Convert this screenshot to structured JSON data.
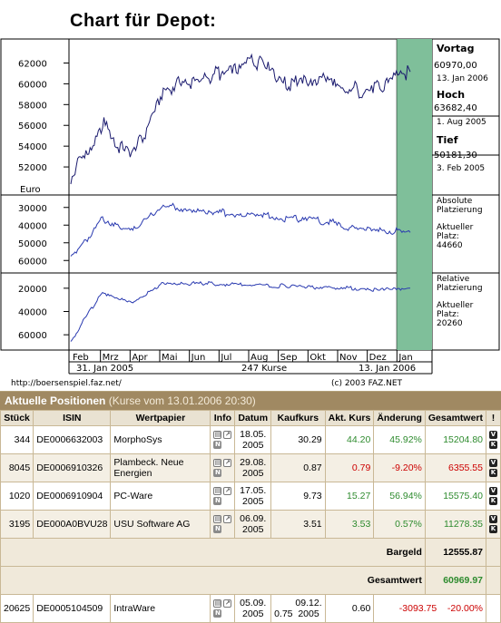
{
  "chart": {
    "title": "Chart für Depot:",
    "currency_label": "Euro",
    "y_ticks_price": [
      "62000",
      "60000",
      "58000",
      "56000",
      "54000",
      "52000"
    ],
    "y_ticks_abs": [
      "30000",
      "40000",
      "50000",
      "60000"
    ],
    "y_ticks_rel": [
      "20000",
      "40000",
      "60000"
    ],
    "months": [
      "Feb",
      "Mrz",
      "Apr",
      "Mai",
      "Jun",
      "Jul",
      "Aug",
      "Sep",
      "Okt",
      "Nov",
      "Dez",
      "Jan"
    ],
    "start_date": "31. Jan 2005",
    "count_label": "247 Kurse",
    "end_date": "13. Jan 2006",
    "url": "http://boersenspiel.faz.net/",
    "copyright": "(c) 2003 FAZ.NET",
    "vortag": {
      "label": "Vortag",
      "value": "60970,00",
      "date": "13. Jan 2006"
    },
    "hoch": {
      "label": "Hoch",
      "value": "63682,40",
      "date": "1. Aug 2005"
    },
    "tief": {
      "label": "Tief",
      "value": "50181,30",
      "date": "3. Feb 2005"
    },
    "abs_label_1": "Absolute",
    "abs_label_2": "Platzierung",
    "abs_label_3": "Aktueller",
    "abs_label_4": "Platz:",
    "abs_value": "44660",
    "rel_label_1": "Relative",
    "rel_label_2": "Platzierung",
    "rel_label_3": "Aktueller",
    "rel_label_4": "Platz:",
    "rel_value": "20260",
    "highlight_color": "#7fbf9a"
  },
  "chart_data": [
    {
      "type": "line",
      "title": "Chart für Depot:",
      "ylabel": "Euro",
      "x": [
        "Feb",
        "Mrz",
        "Apr",
        "Mai",
        "Jun",
        "Jul",
        "Aug",
        "Sep",
        "Okt",
        "Nov",
        "Dez",
        "Jan"
      ],
      "series": [
        {
          "values": [
            51000,
            56000,
            53000,
            59500,
            60000,
            61000,
            62500,
            60000,
            60500,
            59500,
            59800,
            60970
          ]
        }
      ],
      "ylim": [
        50000,
        63700
      ]
    },
    {
      "type": "line",
      "x": [
        "Feb",
        "Mrz",
        "Apr",
        "Mai",
        "Jun",
        "Jul",
        "Aug",
        "Sep",
        "Okt",
        "Nov",
        "Dez",
        "Jan"
      ],
      "series": [
        {
          "name": "Absolute Platzierung",
          "values": [
            60000,
            37000,
            42000,
            29000,
            31000,
            33000,
            34000,
            36000,
            37000,
            41000,
            43000,
            44660
          ]
        }
      ],
      "ylim": [
        25000,
        65000
      ]
    },
    {
      "type": "line",
      "x": [
        "Feb",
        "Mrz",
        "Apr",
        "Mai",
        "Jun",
        "Jul",
        "Aug",
        "Sep",
        "Okt",
        "Nov",
        "Dez",
        "Jan"
      ],
      "series": [
        {
          "name": "Relative Platzierung",
          "values": [
            65000,
            25000,
            32000,
            15000,
            16000,
            16500,
            17000,
            18000,
            19000,
            20000,
            21000,
            20260
          ]
        }
      ],
      "ylim": [
        10000,
        70000
      ]
    }
  ],
  "positions": {
    "title": "Aktuelle Positionen",
    "subtitle": "(Kurse vom 13.01.2006 20:30)",
    "columns": [
      "Stück",
      "ISIN",
      "Wertpapier",
      "Info",
      "Datum",
      "Kaufkurs",
      "Akt. Kurs",
      "Änderung",
      "Gesamtwert",
      "!"
    ],
    "rows": [
      {
        "stueck": "344",
        "isin": "DE0006632003",
        "name": "MorphoSys",
        "datum": "18.05. 2005",
        "kaufkurs": "30.29",
        "akt": "44.20",
        "aenderung": "45.92%",
        "gesamt": "15204.80",
        "trend": "pos"
      },
      {
        "stueck": "8045",
        "isin": "DE0006910326",
        "name": "Plambeck. Neue Energien",
        "datum": "29.08. 2005",
        "kaufkurs": "0.87",
        "akt": "0.79",
        "aenderung": "-9.20%",
        "gesamt": "6355.55",
        "trend": "neg"
      },
      {
        "stueck": "1020",
        "isin": "DE0006910904",
        "name": "PC-Ware",
        "datum": "17.05. 2005",
        "kaufkurs": "9.73",
        "akt": "15.27",
        "aenderung": "56.94%",
        "gesamt": "15575.40",
        "trend": "pos"
      },
      {
        "stueck": "3195",
        "isin": "DE000A0BVU28",
        "name": "USU Software AG",
        "datum": "06.09. 2005",
        "kaufkurs": "3.51",
        "akt": "3.53",
        "aenderung": "0.57%",
        "gesamt": "11278.35",
        "trend": "pos"
      }
    ],
    "bargeld_label": "Bargeld",
    "bargeld_value": "12555.87",
    "gesamtwert_label": "Gesamtwert",
    "gesamtwert_value": "60969.97",
    "closed": {
      "stueck": "20625",
      "isin": "DE0005104509",
      "name": "IntraWare",
      "datum1": "05.09. 2005",
      "kurs1": "0.75",
      "datum2": "09.12. 2005",
      "kurs2": "0.60",
      "diff": "-3093.75",
      "pct": "-20.00%"
    }
  }
}
